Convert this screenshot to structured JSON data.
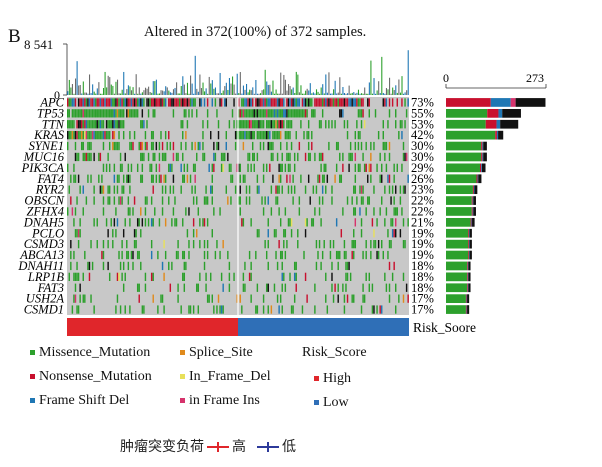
{
  "panel_label": "B",
  "caption": {
    "text_before": "肿瘤突变负荷",
    "high_label": "高",
    "low_label": "低",
    "high_color": "#e0262b",
    "low_color": "#2d3a9a"
  },
  "legend": {
    "items": [
      {
        "label": "Missence_Mutation",
        "color": "#2ca02c"
      },
      {
        "label": "Splice_Site",
        "color": "#e08a1c"
      },
      {
        "label": "Nonsense_Mutation",
        "color": "#c8102e"
      },
      {
        "label": "In_Frame_Del",
        "color": "#e8e05a"
      },
      {
        "label": "Frame Shift Del",
        "color": "#1f77b4"
      },
      {
        "label": "in Frame Ins",
        "color": "#d6336c"
      }
    ],
    "risk_title": "Risk_Score",
    "risk_items": [
      {
        "label": "High",
        "color": "#e0262b"
      },
      {
        "label": "Low",
        "color": "#2f6fb7"
      }
    ]
  },
  "chart_data": {
    "type": "oncoplot",
    "title": "Altered in 372(100%) of 372 samples.",
    "tmb_axis_max_label": "8 541",
    "total_samples": 372,
    "altered_samples": 372,
    "genes": [
      "APC",
      "TP53",
      "TTN",
      "KRAS",
      "SYNE1",
      "MUC16",
      "PIK3CA",
      "FAT4",
      "RYR2",
      "OBSCN",
      "ZFHX4",
      "DNAH5",
      "PCLO",
      "CSMD3",
      "ABCA13",
      "DNAH11",
      "LRP1B",
      "FAT3",
      "USH2A",
      "CSMD1"
    ],
    "frequency_percent": [
      73,
      55,
      53,
      42,
      30,
      30,
      29,
      26,
      23,
      22,
      22,
      21,
      19,
      19,
      19,
      18,
      18,
      18,
      17,
      17
    ],
    "frequency_labels": [
      "73%",
      "55%",
      "53%",
      "42%",
      "30%",
      "30%",
      "29%",
      "26%",
      "23%",
      "22%",
      "22%",
      "21%",
      "19%",
      "19%",
      "19%",
      "18%",
      "18%",
      "18%",
      "17%",
      "17%"
    ],
    "count_axis": {
      "min": 0,
      "max": 273,
      "tick_labels": [
        "0",
        "273"
      ]
    },
    "risk_annotation": {
      "label": "Risk_Soore",
      "groups": [
        {
          "name": "High",
          "samples": 186
        },
        {
          "name": "Low",
          "samples": 186
        }
      ]
    },
    "background_color": "#c8c8c8",
    "mutation_colors": {
      "Missence_Mutation": "#2ca02c",
      "Nonsense_Mutation": "#c8102e",
      "Frame_Shift_Del": "#1f77b4",
      "Splice_Site": "#e08a1c",
      "In_Frame_Del": "#e8e05a",
      "In_Frame_Ins": "#d6336c",
      "Multi_Hit": "#111111"
    }
  }
}
